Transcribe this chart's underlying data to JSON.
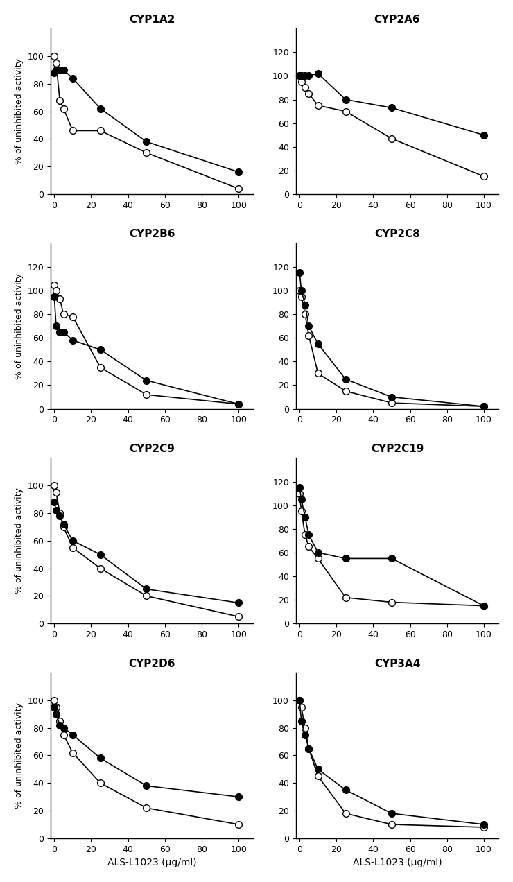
{
  "subplots": [
    {
      "title": "CYP1A2",
      "ylim": [
        0,
        120
      ],
      "yticks": [
        0,
        20,
        40,
        60,
        80,
        100
      ],
      "open": {
        "x": [
          0,
          1,
          3,
          5,
          10,
          25,
          50,
          100
        ],
        "y": [
          100,
          95,
          68,
          62,
          46,
          46,
          30,
          4
        ]
      },
      "closed": {
        "x": [
          0,
          1,
          3,
          5,
          10,
          25,
          50,
          100
        ],
        "y": [
          88,
          90,
          90,
          90,
          84,
          62,
          38,
          16
        ]
      }
    },
    {
      "title": "CYP2A6",
      "ylim": [
        0,
        140
      ],
      "yticks": [
        0,
        20,
        40,
        60,
        80,
        100,
        120
      ],
      "open": {
        "x": [
          0,
          1,
          3,
          5,
          10,
          25,
          50,
          100
        ],
        "y": [
          100,
          95,
          90,
          85,
          75,
          70,
          47,
          15
        ]
      },
      "closed": {
        "x": [
          0,
          1,
          3,
          5,
          10,
          25,
          50,
          100
        ],
        "y": [
          100,
          100,
          100,
          100,
          102,
          80,
          73,
          50
        ]
      }
    },
    {
      "title": "CYP2B6",
      "ylim": [
        0,
        140
      ],
      "yticks": [
        0,
        20,
        40,
        60,
        80,
        100,
        120
      ],
      "open": {
        "x": [
          0,
          1,
          3,
          5,
          10,
          25,
          50,
          100
        ],
        "y": [
          105,
          100,
          93,
          80,
          78,
          35,
          12,
          4
        ]
      },
      "closed": {
        "x": [
          0,
          1,
          3,
          5,
          10,
          25,
          50,
          100
        ],
        "y": [
          95,
          70,
          65,
          65,
          58,
          50,
          24,
          4
        ]
      }
    },
    {
      "title": "CYP2C8",
      "ylim": [
        0,
        140
      ],
      "yticks": [
        0,
        20,
        40,
        60,
        80,
        100,
        120
      ],
      "open": {
        "x": [
          0,
          1,
          3,
          5,
          10,
          25,
          50,
          100
        ],
        "y": [
          100,
          95,
          80,
          62,
          30,
          15,
          5,
          2
        ]
      },
      "closed": {
        "x": [
          0,
          1,
          3,
          5,
          10,
          25,
          50,
          100
        ],
        "y": [
          115,
          100,
          88,
          70,
          55,
          25,
          10,
          2
        ]
      }
    },
    {
      "title": "CYP2C9",
      "ylim": [
        0,
        120
      ],
      "yticks": [
        0,
        20,
        40,
        60,
        80,
        100
      ],
      "open": {
        "x": [
          0,
          1,
          3,
          5,
          10,
          25,
          50,
          100
        ],
        "y": [
          100,
          95,
          80,
          70,
          55,
          40,
          20,
          5
        ]
      },
      "closed": {
        "x": [
          0,
          1,
          3,
          5,
          10,
          25,
          50,
          100
        ],
        "y": [
          88,
          82,
          78,
          72,
          60,
          50,
          25,
          15
        ]
      }
    },
    {
      "title": "CYP2C19",
      "ylim": [
        0,
        140
      ],
      "yticks": [
        0,
        20,
        40,
        60,
        80,
        100,
        120
      ],
      "open": {
        "x": [
          0,
          1,
          3,
          5,
          10,
          25,
          50,
          100
        ],
        "y": [
          110,
          95,
          75,
          65,
          55,
          22,
          18,
          15
        ]
      },
      "closed": {
        "x": [
          0,
          1,
          3,
          5,
          10,
          25,
          50,
          100
        ],
        "y": [
          115,
          105,
          90,
          75,
          60,
          55,
          55,
          15
        ]
      }
    },
    {
      "title": "CYP2D6",
      "ylim": [
        0,
        120
      ],
      "yticks": [
        0,
        20,
        40,
        60,
        80,
        100
      ],
      "open": {
        "x": [
          0,
          1,
          3,
          5,
          10,
          25,
          50,
          100
        ],
        "y": [
          100,
          95,
          85,
          75,
          62,
          40,
          22,
          10
        ]
      },
      "closed": {
        "x": [
          0,
          1,
          3,
          5,
          10,
          25,
          50,
          100
        ],
        "y": [
          95,
          90,
          82,
          80,
          75,
          58,
          38,
          30
        ]
      }
    },
    {
      "title": "CYP3A4",
      "ylim": [
        0,
        120
      ],
      "yticks": [
        0,
        20,
        40,
        60,
        80,
        100
      ],
      "open": {
        "x": [
          0,
          1,
          3,
          5,
          10,
          25,
          50,
          100
        ],
        "y": [
          100,
          95,
          80,
          65,
          45,
          18,
          10,
          8
        ]
      },
      "closed": {
        "x": [
          0,
          1,
          3,
          5,
          10,
          25,
          50,
          100
        ],
        "y": [
          100,
          85,
          75,
          65,
          50,
          35,
          18,
          10
        ]
      }
    }
  ],
  "xlabel": "ALS-L1023 (μg/ml)",
  "ylabel": "% of uninhibited activity",
  "open_style": {
    "color": "black",
    "markerfacecolor": "white",
    "markeredgecolor": "black",
    "markersize": 7,
    "linewidth": 1.2
  },
  "closed_style": {
    "color": "black",
    "markerfacecolor": "black",
    "markeredgecolor": "black",
    "markersize": 7,
    "linewidth": 1.2
  },
  "xticks": [
    0,
    20,
    40,
    60,
    80,
    100
  ],
  "xlim": [
    -2,
    108
  ]
}
